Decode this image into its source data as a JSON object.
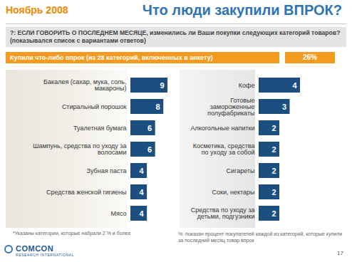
{
  "slide": {
    "date": "Ноябрь 2008",
    "title": "Что люди закупили ВПРОК?",
    "question": "?: ЕСЛИ ГОВОРИТЬ О ПОСЛЕДНЕМ МЕСЯЦЕ, изменились ли Ваши покупки следующих категорий товаров? (показывался список с вариантами ответов)",
    "summary": {
      "label": "Купили что-либо впрок (из 28 категорий, включенных в анкету)",
      "value": 26,
      "value_label": "26%"
    },
    "footnotes": [
      "*Указаны категории, которые набрали 2 % и более",
      "%: показан процент покупателей каждой из категорий, которые купили за последний месяц товар впрок"
    ],
    "logo": {
      "name": "COMCON",
      "subtitle": "RESEARCH INTERNATIONAL"
    },
    "page": "17"
  },
  "chart_data": [
    {
      "type": "bar",
      "orientation": "horizontal",
      "categories": [
        "Бакалея (сахар, мука, соль, макароны)",
        "Стиральный порошок",
        "Туалетная бумага",
        "Шампунь, средства по уходу за волосами",
        "Зубная паста",
        "Средства женской гигиены",
        "Мясо"
      ],
      "values": [
        9,
        8,
        6,
        6,
        4,
        4,
        4
      ],
      "color": "#1c4f7f",
      "xlim": [
        0,
        9
      ],
      "data_labels": true,
      "tick_labels": "y"
    },
    {
      "type": "bar",
      "orientation": "horizontal",
      "categories": [
        "Кофе",
        "Готовые замороженные полуфабрикаты",
        "Алкогольные напитки",
        "Косметика, средства по уходу за собой",
        "Сигареты",
        "Соки, нектары",
        "Средства по уходу за детьми, подгузники"
      ],
      "values": [
        4,
        3,
        2,
        2,
        2,
        2,
        2
      ],
      "color": "#1c4f7f",
      "xlim": [
        0,
        4
      ],
      "data_labels": true,
      "tick_labels": "y"
    }
  ]
}
